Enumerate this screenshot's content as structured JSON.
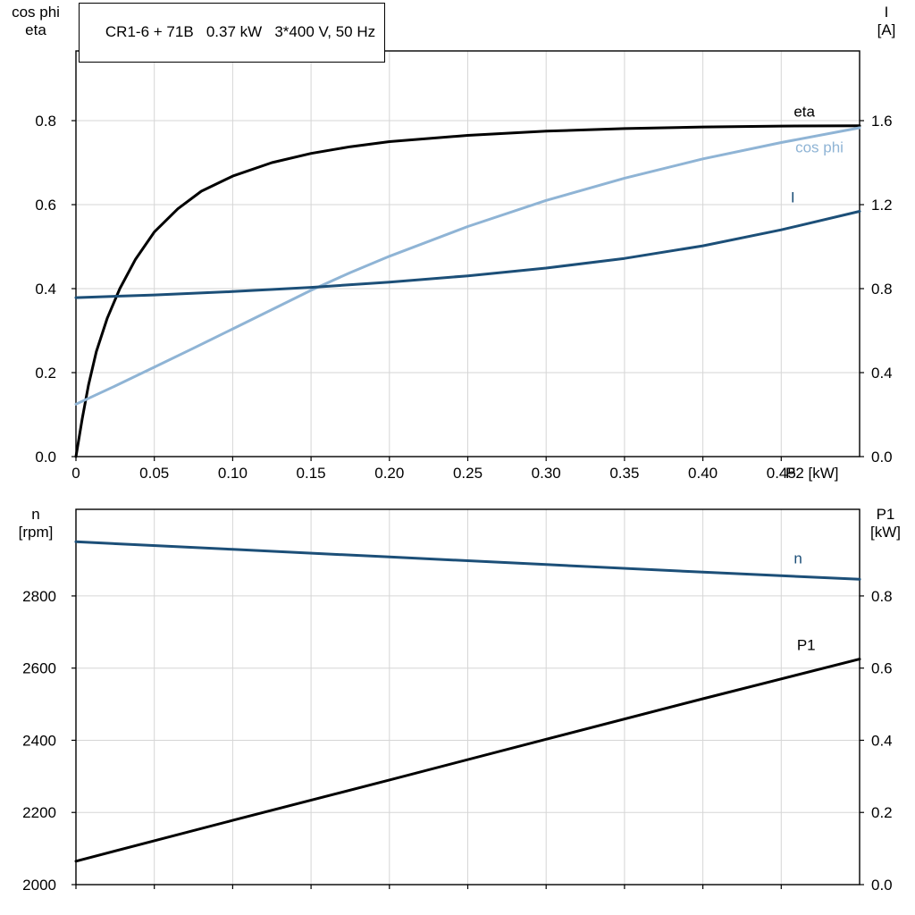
{
  "colors": {
    "eta": "#000000",
    "cos_phi": "#8fb4d5",
    "current": "#1c4f78",
    "n": "#1c4f78",
    "p1": "#000000",
    "grid": "#d6d6d6",
    "axis": "#000000"
  },
  "chart_data": [
    {
      "type": "line",
      "title": "CR1-6 + 71B   0.37 kW   3*400 V, 50 Hz",
      "x_axis": {
        "label": "P2 [kW]",
        "min": 0,
        "max": 0.5,
        "ticks": [
          0,
          0.05,
          0.1,
          0.15,
          0.2,
          0.25,
          0.3,
          0.35,
          0.4,
          0.45
        ],
        "tick_labels": [
          "0",
          "0.05",
          "0.10",
          "0.15",
          "0.20",
          "0.25",
          "0.30",
          "0.35",
          "0.40",
          "0.45"
        ]
      },
      "y_left_axis": {
        "label_lines": [
          "cos phi",
          "eta"
        ],
        "min": 0,
        "max": 0.966,
        "ticks": [
          0,
          0.2,
          0.4,
          0.6,
          0.8
        ],
        "tick_labels": [
          "0.0",
          "0.2",
          "0.4",
          "0.6",
          "0.8"
        ],
        "grid": true
      },
      "y_right_axis": {
        "label_lines": [
          "I",
          "[A]"
        ],
        "min": 0,
        "max": 1.932,
        "ticks": [
          0,
          0.4,
          0.8,
          1.2,
          1.6
        ],
        "tick_labels": [
          "0.0",
          "0.4",
          "0.8",
          "1.2",
          "1.6"
        ]
      },
      "series": [
        {
          "name": "eta",
          "label": "eta",
          "color_key": "eta",
          "axis": "left",
          "label_at": {
            "x": 0.458,
            "y": 0.81
          },
          "x": [
            0,
            0.004,
            0.008,
            0.013,
            0.02,
            0.028,
            0.038,
            0.05,
            0.065,
            0.08,
            0.1,
            0.125,
            0.15,
            0.175,
            0.2,
            0.25,
            0.3,
            0.35,
            0.4,
            0.45,
            0.5
          ],
          "y": [
            0,
            0.09,
            0.17,
            0.25,
            0.33,
            0.4,
            0.47,
            0.535,
            0.59,
            0.632,
            0.668,
            0.7,
            0.722,
            0.738,
            0.75,
            0.765,
            0.775,
            0.781,
            0.785,
            0.787,
            0.788
          ]
        },
        {
          "name": "cos-phi",
          "label": "cos phi",
          "color_key": "cos_phi",
          "axis": "left",
          "label_at": {
            "x": 0.459,
            "y": 0.725
          },
          "x": [
            0,
            0.025,
            0.05,
            0.075,
            0.1,
            0.125,
            0.15,
            0.175,
            0.2,
            0.25,
            0.3,
            0.35,
            0.4,
            0.45,
            0.5
          ],
          "y": [
            0.125,
            0.168,
            0.213,
            0.258,
            0.304,
            0.35,
            0.396,
            0.438,
            0.477,
            0.548,
            0.61,
            0.663,
            0.709,
            0.748,
            0.783
          ]
        },
        {
          "name": "current",
          "label": "I",
          "color_key": "current",
          "axis": "right",
          "label_at": {
            "x": 0.456,
            "y": 1.21
          },
          "x": [
            0,
            0.05,
            0.1,
            0.15,
            0.2,
            0.25,
            0.3,
            0.35,
            0.4,
            0.45,
            0.5
          ],
          "y": [
            0.757,
            0.77,
            0.786,
            0.806,
            0.831,
            0.861,
            0.898,
            0.944,
            1.004,
            1.08,
            1.168
          ]
        }
      ]
    },
    {
      "type": "line",
      "title": "",
      "x_axis": {
        "label": "",
        "min": 0,
        "max": 0.5,
        "ticks": [
          0,
          0.05,
          0.1,
          0.15,
          0.2,
          0.25,
          0.3,
          0.35,
          0.4,
          0.45
        ],
        "tick_labels": []
      },
      "y_left_axis": {
        "label_lines": [
          "n",
          "[rpm]"
        ],
        "min": 2000,
        "max": 3040,
        "ticks": [
          2000,
          2200,
          2400,
          2600,
          2800
        ],
        "tick_labels": [
          "2000",
          "2200",
          "2400",
          "2600",
          "2800"
        ],
        "grid": true
      },
      "y_right_axis": {
        "label_lines": [
          "P1",
          "[kW]"
        ],
        "min": 0,
        "max": 1.04,
        "ticks": [
          0,
          0.2,
          0.4,
          0.6,
          0.8
        ],
        "tick_labels": [
          "0.0",
          "0.2",
          "0.4",
          "0.6",
          "0.8"
        ]
      },
      "series": [
        {
          "name": "n",
          "label": "n",
          "color_key": "n",
          "axis": "left",
          "label_at": {
            "x": 0.458,
            "y": 2890
          },
          "x": [
            0,
            0.1,
            0.2,
            0.3,
            0.4,
            0.5
          ],
          "y": [
            2950,
            2929,
            2908,
            2887,
            2866,
            2846
          ]
        },
        {
          "name": "p1",
          "label": "P1",
          "color_key": "p1",
          "axis": "right",
          "label_at": {
            "x": 0.46,
            "y": 0.65
          },
          "x": [
            0,
            0.1,
            0.2,
            0.3,
            0.4,
            0.5
          ],
          "y": [
            0.065,
            0.178,
            0.29,
            0.403,
            0.515,
            0.625
          ]
        }
      ]
    }
  ]
}
